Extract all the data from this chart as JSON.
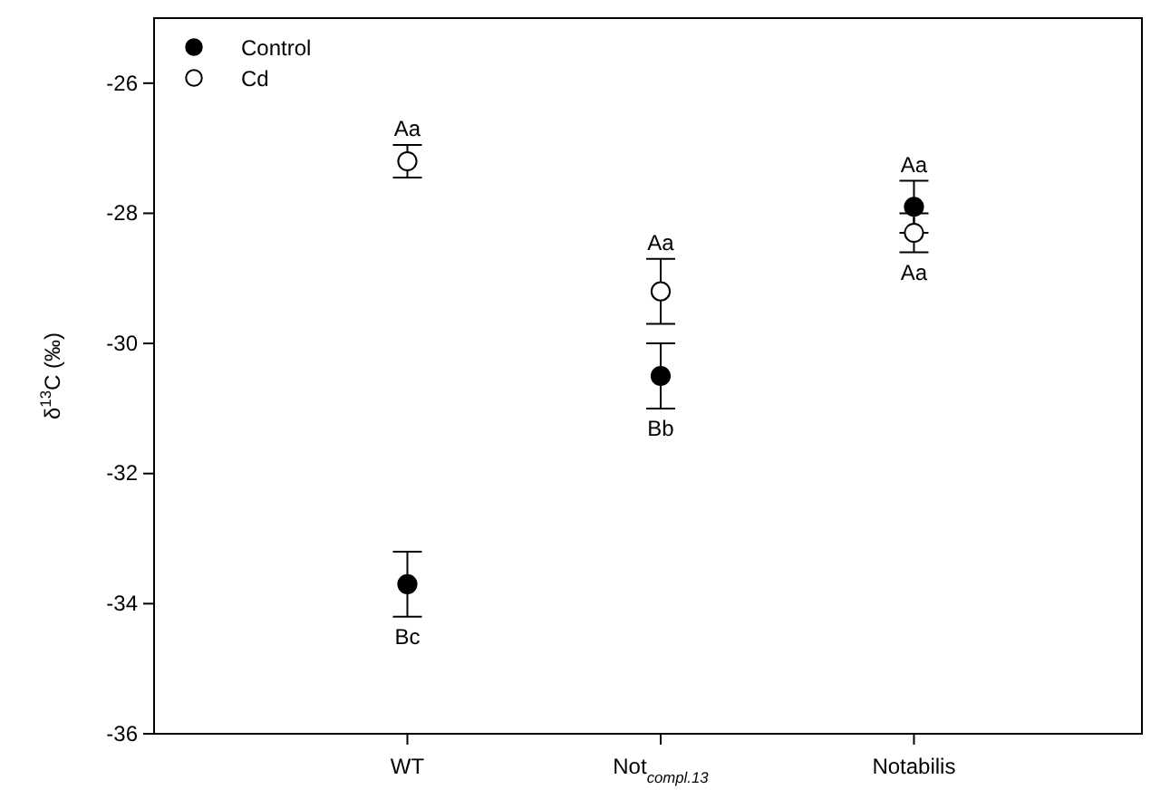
{
  "chart_data": {
    "type": "scatter",
    "ylabel": "δ$^{13}$C (‰)",
    "categories": [
      "WT",
      "Not$_{compl.13}$",
      "Notabilis"
    ],
    "series": [
      {
        "name": "Control",
        "color": "#000000",
        "values": [
          -33.7,
          -30.5,
          -27.9
        ],
        "errors": [
          0.5,
          0.5,
          0.4
        ]
      },
      {
        "name": "Cd",
        "color": "#ffffff",
        "values": [
          -27.2,
          -29.2,
          -28.3
        ],
        "errors": [
          0.25,
          0.5,
          0.3
        ]
      }
    ],
    "ylim": [
      -36,
      -25
    ],
    "yticks": [
      -36,
      -34,
      -32,
      -30,
      -28,
      -26
    ],
    "marker": "circle",
    "legend": "top left",
    "grid": false,
    "annotations": [
      {
        "text": "Aa",
        "x": "WT",
        "y": -26.95
      },
      {
        "text": "Bc",
        "x": "WT",
        "y": -34.2
      },
      {
        "text": "Aa",
        "x": "Not$_{compl.13}$",
        "y": -28.7
      },
      {
        "text": "Bb",
        "x": "Not$_{compl.13}$",
        "y": -31.0
      },
      {
        "text": "Aa",
        "x": "Notabilis",
        "y": -27.5
      },
      {
        "text": "Aa",
        "x": "Notabilis",
        "y": -28.6
      }
    ]
  }
}
